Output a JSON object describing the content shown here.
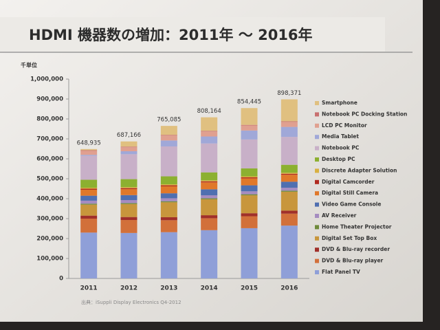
{
  "chart_data": {
    "type": "stacked_bar",
    "title": "HDMI 機器数の増加：2011年 ～ 2016年",
    "y_unit": "千単位",
    "source": "出典：iSuppli Display Electronics Q4-2012",
    "categories": [
      "2011",
      "2012",
      "2013",
      "2014",
      "2015",
      "2016"
    ],
    "ylim": [
      0,
      1000000
    ],
    "yticks": [
      0,
      {
        "value": 100000,
        "label": "100,000"
      },
      {
        "value": 200000,
        "label": "200,000"
      },
      {
        "value": 300000,
        "label": "300,000"
      },
      {
        "value": 400000,
        "label": "400,000"
      },
      {
        "value": 500000,
        "label": "500,000"
      },
      {
        "value": 600000,
        "label": "600,000"
      },
      {
        "value": 700000,
        "label": "700,000"
      },
      {
        "value": 800000,
        "label": "800,000"
      },
      {
        "value": 900000,
        "label": "900,000"
      },
      {
        "value": 1000000,
        "label": "1,000,000"
      }
    ],
    "totals": [
      648935,
      687166,
      765085,
      808164,
      854445,
      898371
    ],
    "total_labels": [
      "648,935",
      "687,166",
      "765,085",
      "808,164",
      "854,445",
      "898,371"
    ],
    "series": [
      {
        "name": "Flat Panel TV",
        "color": "#8f9fd8",
        "values": [
          230000,
          228000,
          232000,
          242000,
          252000,
          265000
        ]
      },
      {
        "name": "DVD & Blu-ray player",
        "color": "#d2703a",
        "values": [
          70000,
          65000,
          60000,
          60000,
          60000,
          60000
        ]
      },
      {
        "name": "DVD & Blu-ray  recorder",
        "color": "#a0302a",
        "values": [
          15000,
          15000,
          15000,
          15000,
          15000,
          15000
        ]
      },
      {
        "name": "Digital Set Top Box",
        "color": "#c8963c",
        "values": [
          55000,
          65000,
          75000,
          80000,
          90000,
          95000
        ]
      },
      {
        "name": "Home Theater Projector",
        "color": "#6f8a3a",
        "values": [
          5000,
          5000,
          5000,
          5000,
          5000,
          5000
        ]
      },
      {
        "name": "AV Receiver",
        "color": "#a58cc0",
        "values": [
          15000,
          15000,
          15000,
          15000,
          15000,
          15000
        ]
      },
      {
        "name": "Video Game Console",
        "color": "#4f6fb0",
        "values": [
          25000,
          25000,
          25000,
          30000,
          30000,
          30000
        ]
      },
      {
        "name": "Digital Still Camera",
        "color": "#e0782a",
        "values": [
          30000,
          30000,
          35000,
          35000,
          35000,
          35000
        ]
      },
      {
        "name": "Digital Camcorder",
        "color": "#b02a20",
        "values": [
          5000,
          5000,
          5000,
          5000,
          5000,
          5000
        ]
      },
      {
        "name": "Discrete Adapter Solution",
        "color": "#d8b040",
        "values": [
          5000,
          5000,
          5000,
          5000,
          5000,
          5000
        ]
      },
      {
        "name": "Desktop PC",
        "color": "#8cb030",
        "values": [
          40000,
          40000,
          40000,
          40000,
          40000,
          40000
        ]
      },
      {
        "name": "Notebook PC",
        "color": "#c8b0c8",
        "values": [
          120000,
          125000,
          150000,
          145000,
          145000,
          140000
        ]
      },
      {
        "name": "Media Tablet",
        "color": "#a0a8d8",
        "values": [
          5000,
          15000,
          30000,
          35000,
          45000,
          50000
        ]
      },
      {
        "name": "LCD PC Monitor",
        "color": "#e0a090",
        "values": [
          20000,
          20000,
          25000,
          25000,
          25000,
          25000
        ]
      },
      {
        "name": "Notebook PC Docking Station",
        "color": "#c87070",
        "values": [
          3000,
          3000,
          3000,
          3000,
          3000,
          3000
        ]
      },
      {
        "name": "Smartphone",
        "color": "#e0c080",
        "values": [
          5935,
          26166,
          45085,
          68164,
          84445,
          110371
        ]
      }
    ]
  }
}
